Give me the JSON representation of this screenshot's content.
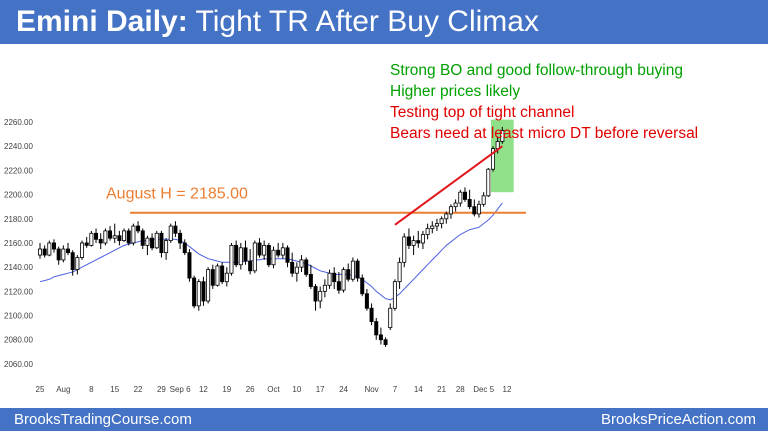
{
  "header": {
    "title_bold": "Emini Daily:",
    "title_rest": "Tight TR After Buy Climax"
  },
  "footer": {
    "left_text": "BrooksTradingCourse.com",
    "right_text": "BrooksPriceAction.com"
  },
  "chart_data": {
    "type": "candlestick",
    "title": "Emini Daily: Tight TR After Buy Climax",
    "ylim": [
      2050,
      2265
    ],
    "y_ticks": [
      "2260.00",
      "2240.00",
      "2220.00",
      "2200.00",
      "2180.00",
      "2160.00",
      "2140.00",
      "2120.00",
      "2100.00",
      "2080.00",
      "2060.00"
    ],
    "x_tick_labels": [
      {
        "label": "25",
        "bar": 0
      },
      {
        "label": "Aug",
        "bar": 5
      },
      {
        "label": "8",
        "bar": 11
      },
      {
        "label": "15",
        "bar": 16
      },
      {
        "label": "22",
        "bar": 21
      },
      {
        "label": "29",
        "bar": 26
      },
      {
        "label": "Sep 6",
        "bar": 30
      },
      {
        "label": "12",
        "bar": 35
      },
      {
        "label": "19",
        "bar": 40
      },
      {
        "label": "26",
        "bar": 45
      },
      {
        "label": "Oct",
        "bar": 50
      },
      {
        "label": "10",
        "bar": 55
      },
      {
        "label": "17",
        "bar": 60
      },
      {
        "label": "24",
        "bar": 65
      },
      {
        "label": "Nov",
        "bar": 71
      },
      {
        "label": "7",
        "bar": 76
      },
      {
        "label": "14",
        "bar": 81
      },
      {
        "label": "21",
        "bar": 86
      },
      {
        "label": "28",
        "bar": 90
      },
      {
        "label": "Dec 5",
        "bar": 95
      },
      {
        "label": "12",
        "bar": 100
      }
    ],
    "colors": {
      "up": "#ffffff",
      "down": "#000000",
      "ma": "#4a5fe0",
      "august_high": "#ed7d31",
      "channel": "#e0161c",
      "highlight": "#7ddb74"
    },
    "ohlc": [
      [
        2150,
        2160,
        2147,
        2155
      ],
      [
        2155,
        2158,
        2148,
        2150
      ],
      [
        2150,
        2162,
        2149,
        2160
      ],
      [
        2160,
        2163,
        2152,
        2155
      ],
      [
        2155,
        2157,
        2142,
        2146
      ],
      [
        2146,
        2158,
        2144,
        2155
      ],
      [
        2155,
        2160,
        2150,
        2152
      ],
      [
        2152,
        2154,
        2133,
        2138
      ],
      [
        2138,
        2150,
        2134,
        2148
      ],
      [
        2148,
        2162,
        2146,
        2160
      ],
      [
        2160,
        2165,
        2156,
        2158
      ],
      [
        2158,
        2170,
        2157,
        2168
      ],
      [
        2168,
        2172,
        2160,
        2163
      ],
      [
        2163,
        2168,
        2155,
        2160
      ],
      [
        2160,
        2172,
        2158,
        2170
      ],
      [
        2170,
        2174,
        2162,
        2164
      ],
      [
        2164,
        2176,
        2160,
        2166
      ],
      [
        2166,
        2170,
        2158,
        2162
      ],
      [
        2162,
        2172,
        2161,
        2170
      ],
      [
        2170,
        2172,
        2158,
        2160
      ],
      [
        2160,
        2176,
        2158,
        2174
      ],
      [
        2174,
        2178,
        2168,
        2170
      ],
      [
        2170,
        2172,
        2155,
        2158
      ],
      [
        2158,
        2166,
        2150,
        2164
      ],
      [
        2164,
        2168,
        2154,
        2156
      ],
      [
        2156,
        2170,
        2155,
        2168
      ],
      [
        2168,
        2170,
        2148,
        2152
      ],
      [
        2152,
        2164,
        2146,
        2162
      ],
      [
        2162,
        2176,
        2160,
        2174
      ],
      [
        2174,
        2178,
        2165,
        2168
      ],
      [
        2168,
        2171,
        2155,
        2160
      ],
      [
        2160,
        2163,
        2150,
        2152
      ],
      [
        2152,
        2155,
        2128,
        2131
      ],
      [
        2131,
        2133,
        2106,
        2108
      ],
      [
        2108,
        2130,
        2104,
        2128
      ],
      [
        2128,
        2132,
        2108,
        2112
      ],
      [
        2112,
        2140,
        2110,
        2138
      ],
      [
        2138,
        2142,
        2122,
        2125
      ],
      [
        2125,
        2143,
        2124,
        2141
      ],
      [
        2141,
        2144,
        2126,
        2128
      ],
      [
        2128,
        2140,
        2124,
        2135
      ],
      [
        2135,
        2160,
        2133,
        2158
      ],
      [
        2158,
        2162,
        2140,
        2142
      ],
      [
        2142,
        2160,
        2138,
        2156
      ],
      [
        2156,
        2162,
        2142,
        2145
      ],
      [
        2145,
        2155,
        2134,
        2137
      ],
      [
        2137,
        2162,
        2135,
        2160
      ],
      [
        2160,
        2164,
        2148,
        2150
      ],
      [
        2150,
        2162,
        2146,
        2158
      ],
      [
        2158,
        2160,
        2140,
        2142
      ],
      [
        2142,
        2157,
        2139,
        2154
      ],
      [
        2154,
        2160,
        2148,
        2150
      ],
      [
        2150,
        2160,
        2147,
        2156
      ],
      [
        2156,
        2158,
        2140,
        2144
      ],
      [
        2144,
        2152,
        2132,
        2135
      ],
      [
        2135,
        2144,
        2128,
        2140
      ],
      [
        2140,
        2150,
        2136,
        2146
      ],
      [
        2146,
        2148,
        2132,
        2134
      ],
      [
        2134,
        2142,
        2122,
        2124
      ],
      [
        2124,
        2126,
        2104,
        2112
      ],
      [
        2112,
        2124,
        2106,
        2120
      ],
      [
        2120,
        2130,
        2115,
        2125
      ],
      [
        2125,
        2138,
        2122,
        2135
      ],
      [
        2135,
        2140,
        2122,
        2128
      ],
      [
        2128,
        2136,
        2118,
        2121
      ],
      [
        2121,
        2140,
        2119,
        2138
      ],
      [
        2138,
        2143,
        2128,
        2130
      ],
      [
        2130,
        2148,
        2128,
        2145
      ],
      [
        2145,
        2147,
        2128,
        2131
      ],
      [
        2131,
        2134,
        2116,
        2118
      ],
      [
        2118,
        2122,
        2104,
        2106
      ],
      [
        2106,
        2110,
        2092,
        2095
      ],
      [
        2095,
        2098,
        2080,
        2084
      ],
      [
        2084,
        2090,
        2076,
        2080
      ],
      [
        2080,
        2082,
        2074,
        2076
      ],
      [
        2090,
        2110,
        2088,
        2106
      ],
      [
        2106,
        2130,
        2104,
        2128
      ],
      [
        2128,
        2148,
        2122,
        2144
      ],
      [
        2144,
        2168,
        2140,
        2165
      ],
      [
        2165,
        2172,
        2155,
        2158
      ],
      [
        2158,
        2166,
        2150,
        2162
      ],
      [
        2162,
        2170,
        2156,
        2160
      ],
      [
        2160,
        2170,
        2155,
        2167
      ],
      [
        2167,
        2176,
        2163,
        2172
      ],
      [
        2172,
        2178,
        2168,
        2174
      ],
      [
        2174,
        2180,
        2170,
        2176
      ],
      [
        2176,
        2182,
        2172,
        2180
      ],
      [
        2180,
        2186,
        2176,
        2184
      ],
      [
        2184,
        2192,
        2180,
        2190
      ],
      [
        2190,
        2196,
        2186,
        2193
      ],
      [
        2193,
        2204,
        2190,
        2202
      ],
      [
        2202,
        2206,
        2194,
        2196
      ],
      [
        2196,
        2204,
        2188,
        2190
      ],
      [
        2190,
        2196,
        2182,
        2184
      ],
      [
        2184,
        2195,
        2181,
        2192
      ],
      [
        2192,
        2202,
        2190,
        2199
      ],
      [
        2199,
        2222,
        2198,
        2221
      ],
      [
        2221,
        2240,
        2219,
        2238
      ],
      [
        2238,
        2248,
        2234,
        2244
      ],
      [
        2244,
        2256,
        2242,
        2253
      ]
    ],
    "moving_average": [
      2128,
      2129,
      2130,
      2132,
      2133,
      2134,
      2135,
      2136,
      2138,
      2140,
      2142,
      2144,
      2146,
      2148,
      2150,
      2152,
      2154,
      2156,
      2158,
      2159,
      2160,
      2161,
      2162,
      2162,
      2163,
      2163,
      2163,
      2163,
      2163,
      2163,
      2162,
      2160,
      2157,
      2154,
      2151,
      2149,
      2147,
      2146,
      2145,
      2144,
      2144,
      2144,
      2144,
      2144,
      2145,
      2145,
      2146,
      2146,
      2147,
      2147,
      2147,
      2147,
      2147,
      2147,
      2146,
      2145,
      2144,
      2143,
      2141,
      2139,
      2137,
      2136,
      2135,
      2134,
      2134,
      2134,
      2134,
      2133,
      2132,
      2130,
      2127,
      2124,
      2120,
      2117,
      2114,
      2113,
      2115,
      2118,
      2122,
      2126,
      2130,
      2134,
      2138,
      2142,
      2146,
      2150,
      2154,
      2158,
      2161,
      2164,
      2167,
      2169,
      2171,
      2172,
      2173,
      2176,
      2179,
      2183,
      2188,
      2193
    ],
    "august_high": 2185.0,
    "august_high_label": "August H = 2185.00",
    "channel_line": {
      "from": {
        "bar": 76,
        "y": 2175
      },
      "to": {
        "bar": 99,
        "y": 2240
      }
    },
    "highlight_box": {
      "from_bar": 97,
      "to_bar": 101,
      "y_low": 2202,
      "y_high": 2262
    },
    "annotations": [
      {
        "text": "Strong BO and good follow-through buying",
        "color": "#00a000"
      },
      {
        "text": "Higher prices likely",
        "color": "#00a000"
      },
      {
        "text": "Testing top of tight channel",
        "color": "#e00000"
      },
      {
        "text": "Bears need at least micro DT before reversal",
        "color": "#e00000"
      }
    ]
  }
}
